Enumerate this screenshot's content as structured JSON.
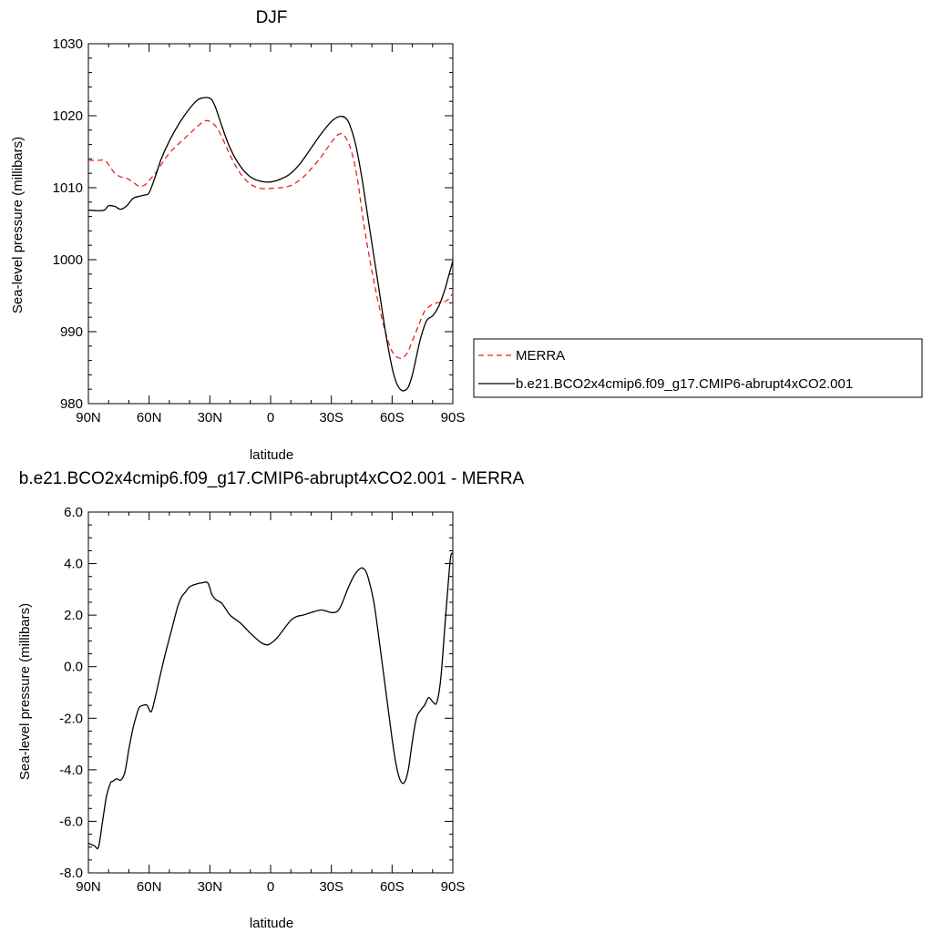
{
  "chart_data": [
    {
      "type": "line",
      "title": "DJF",
      "xlabel": "latitude",
      "ylabel": "Sea-level pressure (millibars)",
      "xlim": [
        90,
        -90
      ],
      "ylim": [
        980,
        1030
      ],
      "xticks": [
        90,
        60,
        30,
        0,
        -30,
        -60,
        -90
      ],
      "xticklabels": [
        "90N",
        "60N",
        "30N",
        "0",
        "30S",
        "60S",
        "90S"
      ],
      "yticks": [
        980,
        990,
        1000,
        1010,
        1020,
        1030
      ],
      "yticklabels": [
        "980",
        "990",
        "1000",
        "1010",
        "1020",
        "1030"
      ],
      "legend": "right",
      "series": [
        {
          "name": "MERRA",
          "color": "#e8231f",
          "dash": "dashed",
          "x": [
            90,
            85,
            82,
            80,
            77,
            74,
            71,
            68,
            65,
            62,
            60,
            57,
            54,
            50,
            45,
            40,
            35,
            32,
            30,
            27,
            24,
            20,
            15,
            10,
            5,
            0,
            -5,
            -10,
            -15,
            -20,
            -25,
            -30,
            -33,
            -35,
            -37,
            -40,
            -43,
            -46,
            -50,
            -54,
            -58,
            -61,
            -64,
            -66,
            -68,
            -70,
            -73,
            -76,
            -80,
            -84,
            -87,
            -90
          ],
          "y": [
            1013.8,
            1013.8,
            1013.8,
            1013.2,
            1012.0,
            1011.5,
            1011.3,
            1010.8,
            1010.2,
            1010.4,
            1011.0,
            1012.0,
            1013.2,
            1014.8,
            1016.2,
            1017.5,
            1018.8,
            1019.3,
            1019.2,
            1018.5,
            1017.0,
            1014.5,
            1012.0,
            1010.5,
            1009.9,
            1009.9,
            1010.0,
            1010.3,
            1011.2,
            1012.6,
            1014.3,
            1016.3,
            1017.3,
            1017.5,
            1017.0,
            1015.0,
            1011.0,
            1005.0,
            998.5,
            993.0,
            988.7,
            986.8,
            986.3,
            986.5,
            987.3,
            988.7,
            990.8,
            992.8,
            993.8,
            994.1,
            994.3,
            995.3
          ]
        },
        {
          "name": "b.e21.BCO2x4cmip6.f09_g17.CMIP6-abrupt4xCO2.001",
          "color": "#000000",
          "dash": "solid",
          "x": [
            90,
            85,
            82,
            80,
            77,
            74,
            71,
            68,
            65,
            62,
            60,
            57,
            54,
            50,
            45,
            40,
            36,
            33,
            31,
            29,
            27,
            24,
            20,
            15,
            10,
            5,
            0,
            -5,
            -10,
            -15,
            -20,
            -25,
            -30,
            -33,
            -35,
            -37,
            -39,
            -42,
            -45,
            -48,
            -51,
            -54,
            -57,
            -60,
            -62,
            -64,
            -66,
            -68,
            -70,
            -72,
            -74,
            -77,
            -80,
            -83,
            -86,
            -88,
            -90
          ],
          "y": [
            1006.9,
            1006.8,
            1006.9,
            1007.5,
            1007.4,
            1007.0,
            1007.5,
            1008.5,
            1008.8,
            1009.0,
            1009.3,
            1011.5,
            1014.0,
            1016.5,
            1019.0,
            1021.0,
            1022.2,
            1022.5,
            1022.5,
            1022.2,
            1021.0,
            1018.5,
            1015.5,
            1013.0,
            1011.5,
            1010.9,
            1010.8,
            1011.2,
            1012.0,
            1013.5,
            1015.5,
            1017.5,
            1019.2,
            1019.8,
            1019.9,
            1019.7,
            1018.8,
            1016.0,
            1011.5,
            1006.0,
            1000.5,
            995.0,
            989.5,
            985.0,
            983.0,
            982.0,
            981.8,
            982.3,
            984.0,
            986.5,
            989.0,
            991.5,
            992.2,
            993.5,
            995.8,
            997.8,
            999.8
          ]
        }
      ]
    },
    {
      "type": "line",
      "title": "b.e21.BCO2x4cmip6.f09_g17.CMIP6-abrupt4xCO2.001 - MERRA",
      "xlabel": "latitude",
      "ylabel": "Sea-level pressure (millibars)",
      "xlim": [
        90,
        -90
      ],
      "ylim": [
        -8,
        6
      ],
      "xticks": [
        90,
        60,
        30,
        0,
        -30,
        -60,
        -90
      ],
      "xticklabels": [
        "90N",
        "60N",
        "30N",
        "0",
        "30S",
        "60S",
        "90S"
      ],
      "yticks": [
        -8,
        -6,
        -4,
        -2,
        0,
        2,
        4,
        6
      ],
      "yticklabels": [
        "-8.0",
        "-6.0",
        "-4.0",
        "-2.0",
        "0.0",
        "2.0",
        "4.0",
        "6.0"
      ],
      "series": [
        {
          "color": "#000000",
          "dash": "solid",
          "x": [
            90,
            87,
            85,
            83,
            81,
            79,
            78,
            76,
            74,
            72,
            70,
            68,
            67,
            65,
            63,
            61,
            59,
            57,
            55,
            52,
            49,
            46,
            44,
            42,
            40,
            37,
            34,
            31,
            29,
            27,
            24,
            20,
            15,
            10,
            5,
            2,
            0,
            -3,
            -6,
            -10,
            -13,
            -16,
            -20,
            -25,
            -30,
            -33,
            -35,
            -38,
            -41,
            -44,
            -46,
            -48,
            -51,
            -54,
            -57,
            -60,
            -62,
            -64,
            -66,
            -68,
            -70,
            -72,
            -74,
            -76,
            -78,
            -80,
            -82,
            -84,
            -86,
            -88,
            -89,
            -90
          ],
          "y": [
            -6.85,
            -6.95,
            -7.0,
            -6.0,
            -5.0,
            -4.5,
            -4.45,
            -4.35,
            -4.4,
            -4.1,
            -3.2,
            -2.4,
            -2.1,
            -1.6,
            -1.5,
            -1.5,
            -1.75,
            -1.2,
            -0.5,
            0.5,
            1.4,
            2.3,
            2.7,
            2.9,
            3.1,
            3.2,
            3.25,
            3.25,
            2.8,
            2.6,
            2.45,
            2.0,
            1.7,
            1.3,
            0.95,
            0.85,
            0.9,
            1.1,
            1.4,
            1.8,
            1.95,
            2.0,
            2.1,
            2.2,
            2.1,
            2.15,
            2.4,
            3.0,
            3.5,
            3.8,
            3.8,
            3.5,
            2.5,
            0.8,
            -1.0,
            -2.8,
            -3.8,
            -4.4,
            -4.5,
            -4.0,
            -2.9,
            -2.0,
            -1.7,
            -1.5,
            -1.2,
            -1.35,
            -1.4,
            -0.5,
            1.5,
            3.5,
            4.3,
            4.4
          ]
        }
      ]
    }
  ]
}
